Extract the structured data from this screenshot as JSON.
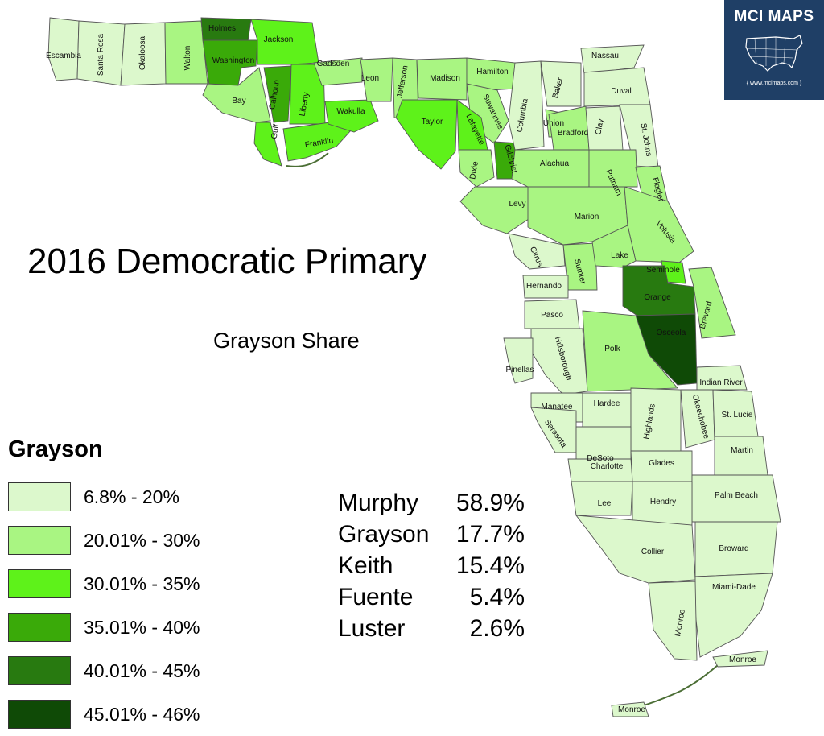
{
  "map": {
    "title": "2016 Democratic Primary",
    "subtitle": "Grayson Share"
  },
  "legend": {
    "title": "Grayson",
    "items": [
      {
        "label": "6.8% - 20%",
        "color": "#dcf8cc"
      },
      {
        "label": "20.01% - 30%",
        "color": "#a9f582"
      },
      {
        "label": "30.01% - 35%",
        "color": "#5ef21a"
      },
      {
        "label": "35.01% - 40%",
        "color": "#3aaa09"
      },
      {
        "label": "40.01% - 45%",
        "color": "#287a10"
      },
      {
        "label": "45.01% - 46%",
        "color": "#0f4a06"
      }
    ]
  },
  "results": [
    {
      "name": "Murphy",
      "pct": "58.9%"
    },
    {
      "name": "Grayson",
      "pct": "17.7%"
    },
    {
      "name": "Keith",
      "pct": "15.4%"
    },
    {
      "name": "Fuente",
      "pct": "5.4%"
    },
    {
      "name": "Luster",
      "pct": "2.6%"
    }
  ],
  "badge": {
    "title": "MCI MAPS",
    "url": "{ www.mcimaps.com }",
    "color": "#1f3f66"
  },
  "counties": [
    {
      "name": "Escambia",
      "bin": 0
    },
    {
      "name": "Santa Rosa",
      "bin": 0
    },
    {
      "name": "Okaloosa",
      "bin": 0
    },
    {
      "name": "Walton",
      "bin": 1
    },
    {
      "name": "Holmes",
      "bin": 4
    },
    {
      "name": "Washington",
      "bin": 3
    },
    {
      "name": "Jackson",
      "bin": 2
    },
    {
      "name": "Bay",
      "bin": 1
    },
    {
      "name": "Calhoun",
      "bin": 3
    },
    {
      "name": "Gulf",
      "bin": 2
    },
    {
      "name": "Liberty",
      "bin": 2
    },
    {
      "name": "Gadsden",
      "bin": 1
    },
    {
      "name": "Franklin",
      "bin": 2
    },
    {
      "name": "Wakulla",
      "bin": 2
    },
    {
      "name": "Leon",
      "bin": 1
    },
    {
      "name": "Jefferson",
      "bin": 1
    },
    {
      "name": "Madison",
      "bin": 1
    },
    {
      "name": "Taylor",
      "bin": 2
    },
    {
      "name": "Hamilton",
      "bin": 1
    },
    {
      "name": "Suwannee",
      "bin": 1
    },
    {
      "name": "Lafayette",
      "bin": 2
    },
    {
      "name": "Dixie",
      "bin": 1
    },
    {
      "name": "Gilchrist",
      "bin": 3
    },
    {
      "name": "Columbia",
      "bin": 0
    },
    {
      "name": "Baker",
      "bin": 0
    },
    {
      "name": "Union",
      "bin": 1
    },
    {
      "name": "Bradford",
      "bin": 1
    },
    {
      "name": "Nassau",
      "bin": 0
    },
    {
      "name": "Duval",
      "bin": 0
    },
    {
      "name": "Clay",
      "bin": 0
    },
    {
      "name": "St. Johns",
      "bin": 0
    },
    {
      "name": "Alachua",
      "bin": 1
    },
    {
      "name": "Putnam",
      "bin": 1
    },
    {
      "name": "Flagler",
      "bin": 1
    },
    {
      "name": "Levy",
      "bin": 1
    },
    {
      "name": "Marion",
      "bin": 1
    },
    {
      "name": "Volusia",
      "bin": 1
    },
    {
      "name": "Citrus",
      "bin": 0
    },
    {
      "name": "Sumter",
      "bin": 1
    },
    {
      "name": "Lake",
      "bin": 1
    },
    {
      "name": "Seminole",
      "bin": 2
    },
    {
      "name": "Orange",
      "bin": 4
    },
    {
      "name": "Hernando",
      "bin": 0
    },
    {
      "name": "Brevard",
      "bin": 1
    },
    {
      "name": "Pasco",
      "bin": 0
    },
    {
      "name": "Osceola",
      "bin": 5
    },
    {
      "name": "Hillsborough",
      "bin": 0
    },
    {
      "name": "Polk",
      "bin": 1
    },
    {
      "name": "Pinellas",
      "bin": 0
    },
    {
      "name": "Indian River",
      "bin": 0
    },
    {
      "name": "Manatee",
      "bin": 0
    },
    {
      "name": "Hardee",
      "bin": 0
    },
    {
      "name": "Highlands",
      "bin": 0
    },
    {
      "name": "Okeechobee",
      "bin": 0
    },
    {
      "name": "St. Lucie",
      "bin": 0
    },
    {
      "name": "Sarasota",
      "bin": 0
    },
    {
      "name": "DeSoto",
      "bin": 0
    },
    {
      "name": "Martin",
      "bin": 0
    },
    {
      "name": "Charlotte",
      "bin": 0
    },
    {
      "name": "Glades",
      "bin": 0
    },
    {
      "name": "Palm Beach",
      "bin": 0
    },
    {
      "name": "Lee",
      "bin": 0
    },
    {
      "name": "Hendry",
      "bin": 0
    },
    {
      "name": "Collier",
      "bin": 0
    },
    {
      "name": "Broward",
      "bin": 0
    },
    {
      "name": "Miami-Dade",
      "bin": 0
    },
    {
      "name": "Monroe",
      "bin": 0
    },
    {
      "name": "Monroe",
      "bin": 0
    },
    {
      "name": "Monroe",
      "bin": 0
    }
  ]
}
